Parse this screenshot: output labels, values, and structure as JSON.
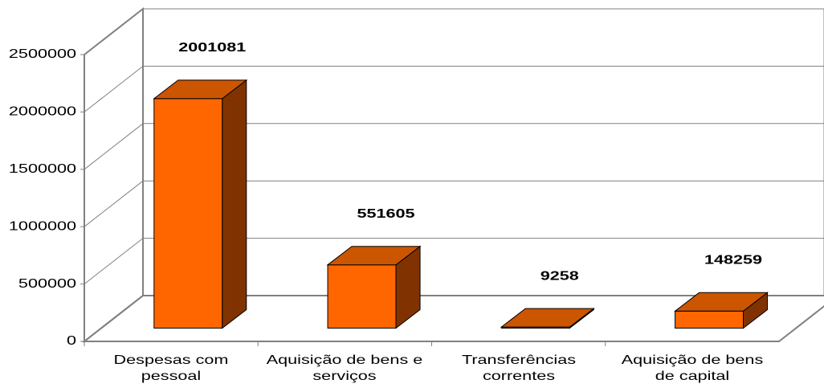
{
  "chart_data": {
    "type": "bar3d",
    "categories": [
      "Despesas com pessoal",
      "Aquisição de bens e serviços",
      "Transferências correntes",
      "Aquisição de bens de capital"
    ],
    "values": [
      2001081,
      551605,
      9258,
      148259
    ],
    "color": "#ff6600",
    "ylim": [
      0,
      2500000
    ],
    "yticks": [
      0,
      500000,
      1000000,
      1500000,
      2000000,
      2500000
    ],
    "grid": true
  }
}
